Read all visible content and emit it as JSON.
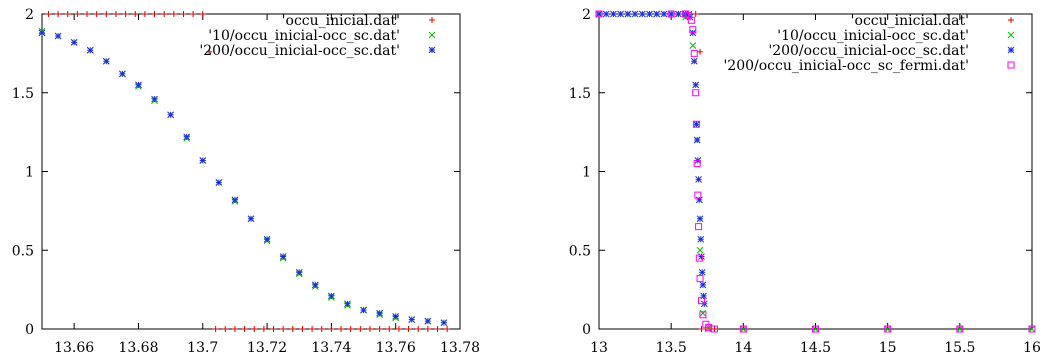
{
  "chart_data": [
    {
      "type": "scatter",
      "title": "",
      "xlabel": "",
      "ylabel": "",
      "xlim": [
        13.65,
        13.78
      ],
      "ylim": [
        0,
        2
      ],
      "xticks": [
        "13.66",
        "13.68",
        "13.7",
        "13.72",
        "13.74",
        "13.76",
        "13.78"
      ],
      "yticks": [
        "0",
        "0.5",
        "1",
        "1.5",
        "2"
      ],
      "legend_position": "top-right",
      "grid": false,
      "series": [
        {
          "name": "'occu_inicial.dat'",
          "marker": "plus",
          "color": "#e00000",
          "points": [
            [
              13.652,
              2
            ],
            [
              13.655,
              2
            ],
            [
              13.658,
              2
            ],
            [
              13.661,
              2
            ],
            [
              13.664,
              2
            ],
            [
              13.667,
              2
            ],
            [
              13.67,
              2
            ],
            [
              13.673,
              2
            ],
            [
              13.676,
              2
            ],
            [
              13.679,
              2
            ],
            [
              13.682,
              2
            ],
            [
              13.685,
              2
            ],
            [
              13.688,
              2
            ],
            [
              13.691,
              2
            ],
            [
              13.694,
              2
            ],
            [
              13.697,
              2
            ],
            [
              13.7,
              2
            ],
            [
              13.702,
              1.76
            ],
            [
              13.704,
              0
            ],
            [
              13.707,
              0
            ],
            [
              13.71,
              0
            ],
            [
              13.713,
              0
            ],
            [
              13.716,
              0
            ],
            [
              13.719,
              0
            ],
            [
              13.722,
              0
            ],
            [
              13.725,
              0
            ],
            [
              13.728,
              0
            ],
            [
              13.731,
              0
            ],
            [
              13.734,
              0
            ],
            [
              13.737,
              0
            ],
            [
              13.74,
              0
            ],
            [
              13.743,
              0
            ],
            [
              13.746,
              0
            ],
            [
              13.749,
              0
            ],
            [
              13.752,
              0
            ],
            [
              13.755,
              0
            ],
            [
              13.758,
              0
            ],
            [
              13.761,
              0
            ],
            [
              13.764,
              0
            ],
            [
              13.767,
              0
            ],
            [
              13.77,
              0
            ],
            [
              13.773,
              0
            ],
            [
              13.776,
              0
            ]
          ]
        },
        {
          "name": "'10/occu_inicial-occ_sc.dat'",
          "marker": "cross",
          "color": "#00c000",
          "points": [
            [
              13.65,
              1.89
            ],
            [
              13.655,
              1.86
            ],
            [
              13.66,
              1.82
            ],
            [
              13.665,
              1.77
            ],
            [
              13.67,
              1.7
            ],
            [
              13.675,
              1.62
            ],
            [
              13.68,
              1.54
            ],
            [
              13.685,
              1.45
            ],
            [
              13.69,
              1.36
            ],
            [
              13.695,
              1.21
            ],
            [
              13.7,
              1.07
            ],
            [
              13.705,
              0.93
            ],
            [
              13.71,
              0.81
            ],
            [
              13.715,
              0.7
            ],
            [
              13.72,
              0.56
            ],
            [
              13.725,
              0.45
            ],
            [
              13.73,
              0.35
            ],
            [
              13.735,
              0.27
            ],
            [
              13.74,
              0.2
            ],
            [
              13.745,
              0.15
            ],
            [
              13.75,
              0.12
            ],
            [
              13.755,
              0.09
            ],
            [
              13.76,
              0.07
            ],
            [
              13.765,
              0.06
            ],
            [
              13.77,
              0.05
            ],
            [
              13.775,
              0.04
            ]
          ]
        },
        {
          "name": "'200/occu_inicial-occ_sc.dat'",
          "marker": "star",
          "color": "#1a2bd8",
          "points": [
            [
              13.65,
              1.88
            ],
            [
              13.655,
              1.86
            ],
            [
              13.66,
              1.82
            ],
            [
              13.665,
              1.77
            ],
            [
              13.67,
              1.7
            ],
            [
              13.675,
              1.62
            ],
            [
              13.68,
              1.55
            ],
            [
              13.685,
              1.46
            ],
            [
              13.69,
              1.36
            ],
            [
              13.695,
              1.22
            ],
            [
              13.7,
              1.07
            ],
            [
              13.705,
              0.93
            ],
            [
              13.71,
              0.82
            ],
            [
              13.715,
              0.7
            ],
            [
              13.72,
              0.57
            ],
            [
              13.725,
              0.46
            ],
            [
              13.73,
              0.36
            ],
            [
              13.735,
              0.28
            ],
            [
              13.74,
              0.21
            ],
            [
              13.745,
              0.16
            ],
            [
              13.75,
              0.12
            ],
            [
              13.755,
              0.1
            ],
            [
              13.76,
              0.08
            ],
            [
              13.765,
              0.06
            ],
            [
              13.77,
              0.05
            ],
            [
              13.775,
              0.04
            ]
          ]
        }
      ]
    },
    {
      "type": "scatter",
      "title": "",
      "xlabel": "",
      "ylabel": "",
      "xlim": [
        13,
        16
      ],
      "ylim": [
        0,
        2
      ],
      "xticks": [
        "13",
        "13.5",
        "14",
        "14.5",
        "15",
        "15.5",
        "16"
      ],
      "yticks": [
        "0",
        "0.5",
        "1",
        "1.5",
        "2"
      ],
      "legend_position": "top-right",
      "grid": false,
      "series": [
        {
          "name": "'occu_inicial.dat'",
          "marker": "plus",
          "color": "#e00000",
          "points": [
            [
              13.55,
              2
            ],
            [
              13.58,
              2
            ],
            [
              13.61,
              2
            ],
            [
              13.64,
              2
            ],
            [
              13.67,
              2
            ],
            [
              13.7,
              1.76
            ],
            [
              13.71,
              0
            ],
            [
              13.74,
              0
            ],
            [
              13.77,
              0
            ],
            [
              13.8,
              0
            ]
          ]
        },
        {
          "name": "'10/occu_inicial-occ_sc.dat'",
          "marker": "cross",
          "color": "#00c000",
          "points": [
            [
              13.0,
              2
            ],
            [
              13.2,
              2
            ],
            [
              13.4,
              2
            ],
            [
              13.6,
              1.98
            ],
            [
              13.65,
              1.8
            ],
            [
              13.68,
              1.2
            ],
            [
              13.7,
              0.5
            ],
            [
              13.72,
              0.1
            ],
            [
              13.76,
              0.01
            ],
            [
              14.0,
              0
            ],
            [
              14.5,
              0
            ],
            [
              15.0,
              0
            ],
            [
              15.5,
              0
            ],
            [
              16.0,
              0
            ]
          ]
        },
        {
          "name": "'200/occu_inicial-occ_sc.dat'",
          "marker": "star",
          "color": "#1a2bd8",
          "points": [
            [
              13.0,
              2
            ],
            [
              13.05,
              2
            ],
            [
              13.1,
              2
            ],
            [
              13.15,
              2
            ],
            [
              13.2,
              2
            ],
            [
              13.25,
              2
            ],
            [
              13.3,
              2
            ],
            [
              13.35,
              2
            ],
            [
              13.4,
              2
            ],
            [
              13.45,
              2
            ],
            [
              13.5,
              2
            ],
            [
              13.55,
              2
            ],
            [
              13.6,
              2
            ],
            [
              13.63,
              1.98
            ],
            [
              13.65,
              1.88
            ],
            [
              13.66,
              1.7
            ],
            [
              13.67,
              1.55
            ],
            [
              13.675,
              1.3
            ],
            [
              13.68,
              1.2
            ],
            [
              13.685,
              1.07
            ],
            [
              13.69,
              0.95
            ],
            [
              13.695,
              0.82
            ],
            [
              13.7,
              0.7
            ],
            [
              13.705,
              0.57
            ],
            [
              13.71,
              0.46
            ],
            [
              13.715,
              0.36
            ],
            [
              13.72,
              0.28
            ],
            [
              13.725,
              0.21
            ],
            [
              13.73,
              0.16
            ]
          ]
        },
        {
          "name": "'200/occu_inicial-occ_sc_fermi.dat'",
          "marker": "square",
          "color": "#ff00ff",
          "points": [
            [
              13.0,
              2
            ],
            [
              13.5,
              2
            ],
            [
              13.6,
              2
            ],
            [
              13.62,
              1.99
            ],
            [
              13.64,
              1.96
            ],
            [
              13.65,
              1.9
            ],
            [
              13.66,
              1.75
            ],
            [
              13.67,
              1.5
            ],
            [
              13.675,
              1.3
            ],
            [
              13.68,
              1.05
            ],
            [
              13.685,
              0.85
            ],
            [
              13.69,
              0.65
            ],
            [
              13.695,
              0.45
            ],
            [
              13.7,
              0.32
            ],
            [
              13.71,
              0.18
            ],
            [
              13.72,
              0.09
            ],
            [
              13.74,
              0.03
            ],
            [
              13.76,
              0.01
            ],
            [
              13.8,
              0
            ],
            [
              14.0,
              0
            ],
            [
              14.5,
              0
            ],
            [
              15.0,
              0
            ],
            [
              15.5,
              0
            ],
            [
              16.0,
              0
            ]
          ]
        }
      ]
    }
  ]
}
